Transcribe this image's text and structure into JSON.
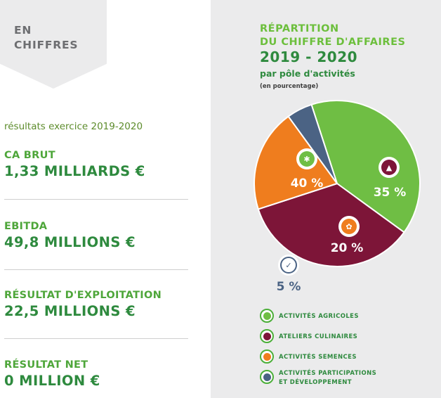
{
  "tag": {
    "label": "EN\nCHIFFRES"
  },
  "results": {
    "heading": "résultats exercice 2019-2020",
    "metrics": [
      {
        "label": "CA BRUT",
        "value": "1,33 MILLIARDS €"
      },
      {
        "label": "EBITDA",
        "value": "49,8 MILLIONS €"
      },
      {
        "label": "RÉSULTAT D'EXPLOITATION",
        "value": "22,5 MILLIONS €"
      },
      {
        "label": "RÉSULTAT NET",
        "value": "0 MILLION €"
      }
    ]
  },
  "chart_data": {
    "type": "pie",
    "title": "RÉPARTITION\nDU CHIFFRE D'AFFAIRES",
    "years": "2019 - 2020",
    "subtitle": "par pôle d'activités",
    "unit_note": "(en pourcentage)",
    "slices": [
      {
        "name": "ACTIVITÉS AGRICOLES",
        "value": 40,
        "label": "40 %",
        "color": "#6fbe44",
        "icon": "wheat-icon"
      },
      {
        "name": "ATELIERS CULINAIRES",
        "value": 35,
        "label": "35 %",
        "color": "#7d1538",
        "icon": "cloche-icon"
      },
      {
        "name": "ACTIVITÉS SEMENCES",
        "value": 20,
        "label": "20 %",
        "color": "#ef7d1e",
        "icon": "seeds-icon"
      },
      {
        "name": "ACTIVITÉS PARTICIPATIONS\nET DÉVELOPPEMENT",
        "value": 5,
        "label": "5 %",
        "color": "#4b6384",
        "icon": "check-leaf-icon"
      }
    ]
  },
  "colors": {
    "right_background": "#ebebec",
    "heading_green": "#2e8a3e",
    "light_green": "#6cbf3c"
  }
}
